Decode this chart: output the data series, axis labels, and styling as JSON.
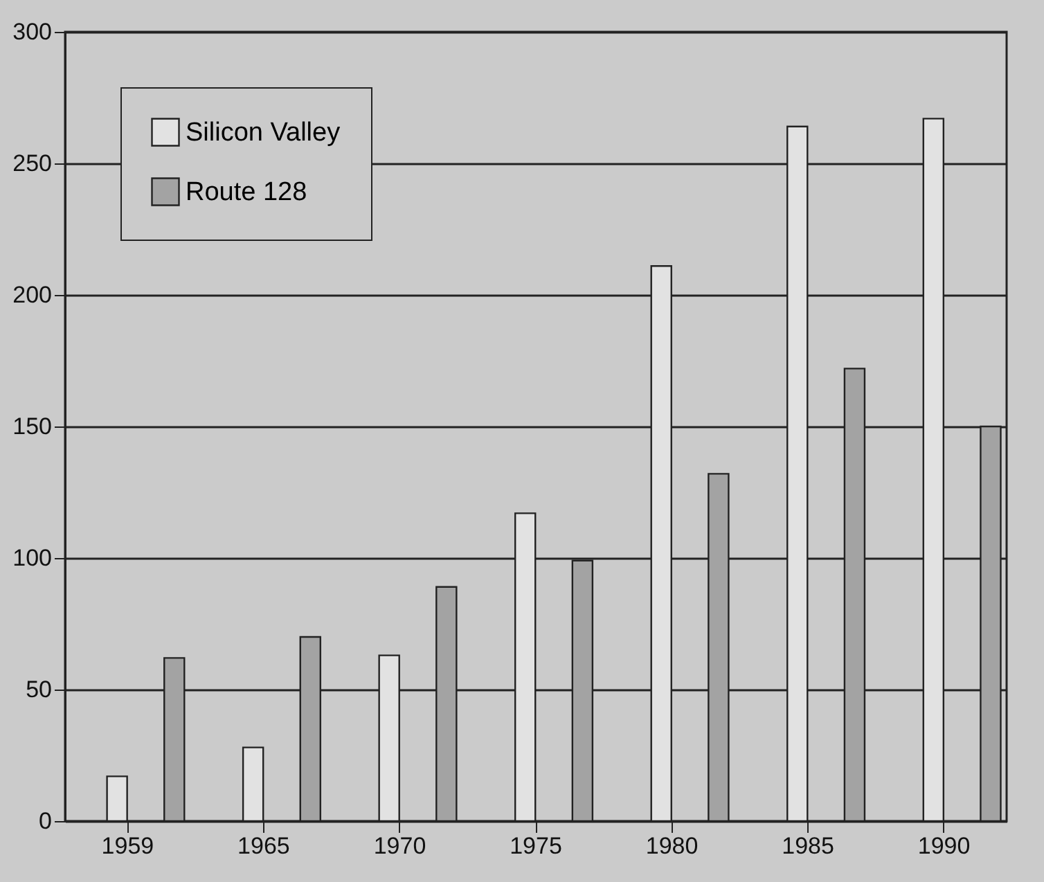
{
  "chart_data": {
    "type": "bar",
    "categories": [
      "1959",
      "1965",
      "1970",
      "1975",
      "1980",
      "1985",
      "1990"
    ],
    "series": [
      {
        "name": "Silicon Valley",
        "color": "#e2e2e2",
        "values": [
          17,
          28,
          63,
          117,
          211,
          264,
          267
        ]
      },
      {
        "name": "Route 128",
        "color": "#a3a3a3",
        "values": [
          62,
          70,
          89,
          99,
          132,
          172,
          150
        ]
      }
    ],
    "ylim": [
      0,
      300
    ],
    "yticks": [
      0,
      50,
      100,
      150,
      200,
      250,
      300
    ],
    "grid": "y",
    "legend": "top left"
  }
}
